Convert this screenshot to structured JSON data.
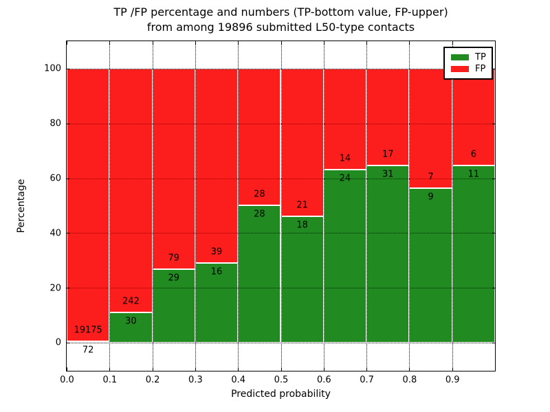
{
  "title": {
    "line1": "TP /FP percentage and numbers (TP-bottom value, FP-upper)",
    "line2": "from among 19896 submitted L50-type contacts"
  },
  "chart_data": {
    "type": "bar",
    "stacked": true,
    "normalized_to_percent": true,
    "title": "TP /FP percentage and numbers (TP-bottom value, FP-upper) from among 19896 submitted L50-type contacts",
    "xlabel": "Predicted probability",
    "ylabel": "Percentage",
    "total_submitted_contacts": 19896,
    "bin_edges": [
      0.0,
      0.1,
      0.2,
      0.3,
      0.4,
      0.5,
      0.6,
      0.7,
      0.8,
      0.9,
      1.0
    ],
    "series": [
      {
        "name": "TP",
        "color": "#218b21",
        "counts": [
          72,
          30,
          29,
          16,
          28,
          18,
          24,
          31,
          9,
          11
        ]
      },
      {
        "name": "FP",
        "color": "#fc1d1d",
        "counts": [
          19175,
          242,
          79,
          39,
          28,
          21,
          14,
          17,
          7,
          6
        ]
      }
    ],
    "tp_percent_per_bin": [
      0.37,
      11.03,
      26.85,
      29.09,
      50.0,
      46.15,
      63.16,
      64.58,
      56.25,
      64.71
    ],
    "xticks": [
      "0.0",
      "0.1",
      "0.2",
      "0.3",
      "0.4",
      "0.5",
      "0.6",
      "0.7",
      "0.8",
      "0.9"
    ],
    "yticks": [
      0,
      20,
      40,
      60,
      80,
      100
    ],
    "xlim": [
      0.0,
      1.0
    ],
    "ylim": [
      -10.3,
      110.0
    ],
    "grid": "dotted",
    "legend": {
      "position": "upper right",
      "items": [
        "TP",
        "FP"
      ]
    }
  }
}
